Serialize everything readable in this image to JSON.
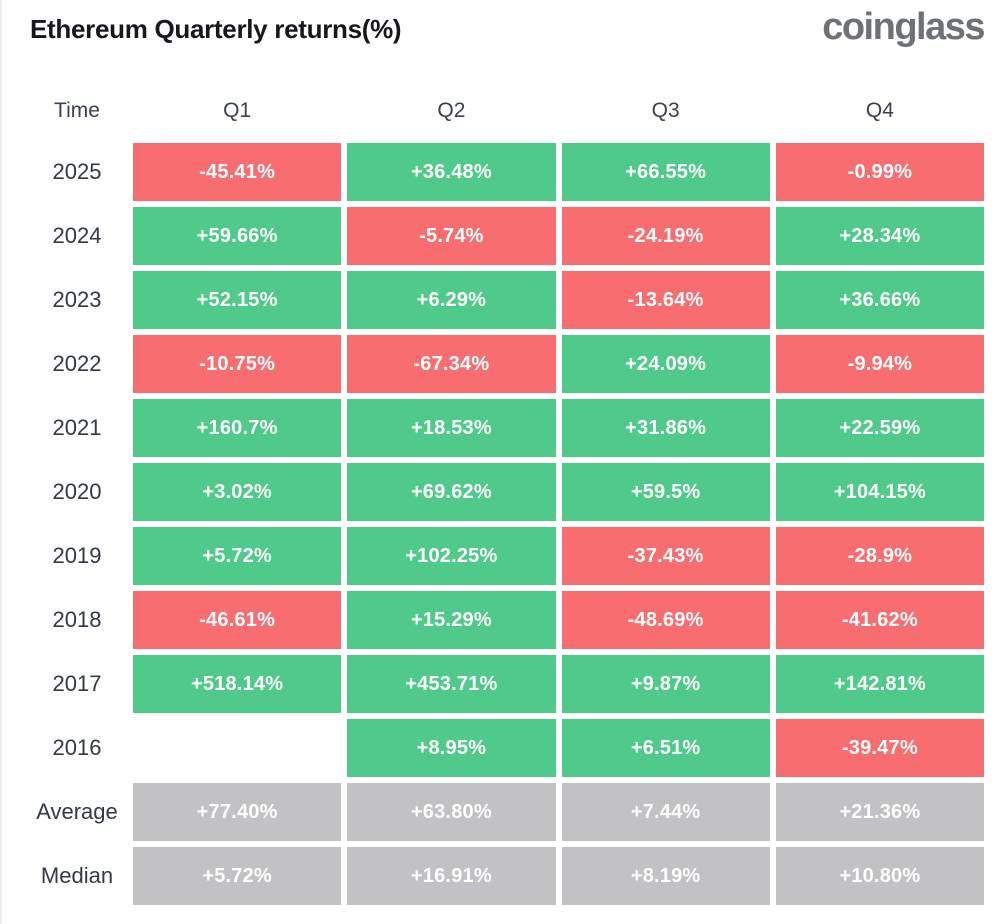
{
  "page": {
    "title": "Ethereum Quarterly returns(%)",
    "brand": "coinglass"
  },
  "colors": {
    "positive": "#4fca8a",
    "negative": "#f86d70",
    "summary": "#c2c2c4"
  },
  "chart_data": {
    "type": "table",
    "title": "Ethereum Quarterly returns(%)",
    "columns": [
      "Time",
      "Q1",
      "Q2",
      "Q3",
      "Q4"
    ],
    "legend_note": "green = positive quarterly return, red = negative quarterly return, gray = summary statistics",
    "rows": [
      {
        "label": "2025",
        "cells": [
          {
            "display": "-45.41%",
            "value": -45.41,
            "state": "negative"
          },
          {
            "display": "+36.48%",
            "value": 36.48,
            "state": "positive"
          },
          {
            "display": "+66.55%",
            "value": 66.55,
            "state": "positive"
          },
          {
            "display": "-0.99%",
            "value": -0.99,
            "state": "negative"
          }
        ]
      },
      {
        "label": "2024",
        "cells": [
          {
            "display": "+59.66%",
            "value": 59.66,
            "state": "positive"
          },
          {
            "display": "-5.74%",
            "value": -5.74,
            "state": "negative"
          },
          {
            "display": "-24.19%",
            "value": -24.19,
            "state": "negative"
          },
          {
            "display": "+28.34%",
            "value": 28.34,
            "state": "positive"
          }
        ]
      },
      {
        "label": "2023",
        "cells": [
          {
            "display": "+52.15%",
            "value": 52.15,
            "state": "positive"
          },
          {
            "display": "+6.29%",
            "value": 6.29,
            "state": "positive"
          },
          {
            "display": "-13.64%",
            "value": -13.64,
            "state": "negative"
          },
          {
            "display": "+36.66%",
            "value": 36.66,
            "state": "positive"
          }
        ]
      },
      {
        "label": "2022",
        "cells": [
          {
            "display": "-10.75%",
            "value": -10.75,
            "state": "negative"
          },
          {
            "display": "-67.34%",
            "value": -67.34,
            "state": "negative"
          },
          {
            "display": "+24.09%",
            "value": 24.09,
            "state": "positive"
          },
          {
            "display": "-9.94%",
            "value": -9.94,
            "state": "negative"
          }
        ]
      },
      {
        "label": "2021",
        "cells": [
          {
            "display": "+160.7%",
            "value": 160.7,
            "state": "positive"
          },
          {
            "display": "+18.53%",
            "value": 18.53,
            "state": "positive"
          },
          {
            "display": "+31.86%",
            "value": 31.86,
            "state": "positive"
          },
          {
            "display": "+22.59%",
            "value": 22.59,
            "state": "positive"
          }
        ]
      },
      {
        "label": "2020",
        "cells": [
          {
            "display": "+3.02%",
            "value": 3.02,
            "state": "positive"
          },
          {
            "display": "+69.62%",
            "value": 69.62,
            "state": "positive"
          },
          {
            "display": "+59.5%",
            "value": 59.5,
            "state": "positive"
          },
          {
            "display": "+104.15%",
            "value": 104.15,
            "state": "positive"
          }
        ]
      },
      {
        "label": "2019",
        "cells": [
          {
            "display": "+5.72%",
            "value": 5.72,
            "state": "positive"
          },
          {
            "display": "+102.25%",
            "value": 102.25,
            "state": "positive"
          },
          {
            "display": "-37.43%",
            "value": -37.43,
            "state": "negative"
          },
          {
            "display": "-28.9%",
            "value": -28.9,
            "state": "negative"
          }
        ]
      },
      {
        "label": "2018",
        "cells": [
          {
            "display": "-46.61%",
            "value": -46.61,
            "state": "negative"
          },
          {
            "display": "+15.29%",
            "value": 15.29,
            "state": "positive"
          },
          {
            "display": "-48.69%",
            "value": -48.69,
            "state": "negative"
          },
          {
            "display": "-41.62%",
            "value": -41.62,
            "state": "negative"
          }
        ]
      },
      {
        "label": "2017",
        "cells": [
          {
            "display": "+518.14%",
            "value": 518.14,
            "state": "positive"
          },
          {
            "display": "+453.71%",
            "value": 453.71,
            "state": "positive"
          },
          {
            "display": "+9.87%",
            "value": 9.87,
            "state": "positive"
          },
          {
            "display": "+142.81%",
            "value": 142.81,
            "state": "positive"
          }
        ]
      },
      {
        "label": "2016",
        "cells": [
          {
            "display": "",
            "value": null,
            "state": "empty"
          },
          {
            "display": "+8.95%",
            "value": 8.95,
            "state": "positive"
          },
          {
            "display": "+6.51%",
            "value": 6.51,
            "state": "positive"
          },
          {
            "display": "-39.47%",
            "value": -39.47,
            "state": "negative"
          }
        ]
      },
      {
        "label": "Average",
        "cells": [
          {
            "display": "+77.40%",
            "value": 77.4,
            "state": "summary"
          },
          {
            "display": "+63.80%",
            "value": 63.8,
            "state": "summary"
          },
          {
            "display": "+7.44%",
            "value": 7.44,
            "state": "summary"
          },
          {
            "display": "+21.36%",
            "value": 21.36,
            "state": "summary"
          }
        ]
      },
      {
        "label": "Median",
        "cells": [
          {
            "display": "+5.72%",
            "value": 5.72,
            "state": "summary"
          },
          {
            "display": "+16.91%",
            "value": 16.91,
            "state": "summary"
          },
          {
            "display": "+8.19%",
            "value": 8.19,
            "state": "summary"
          },
          {
            "display": "+10.80%",
            "value": 10.8,
            "state": "summary"
          }
        ]
      }
    ]
  }
}
